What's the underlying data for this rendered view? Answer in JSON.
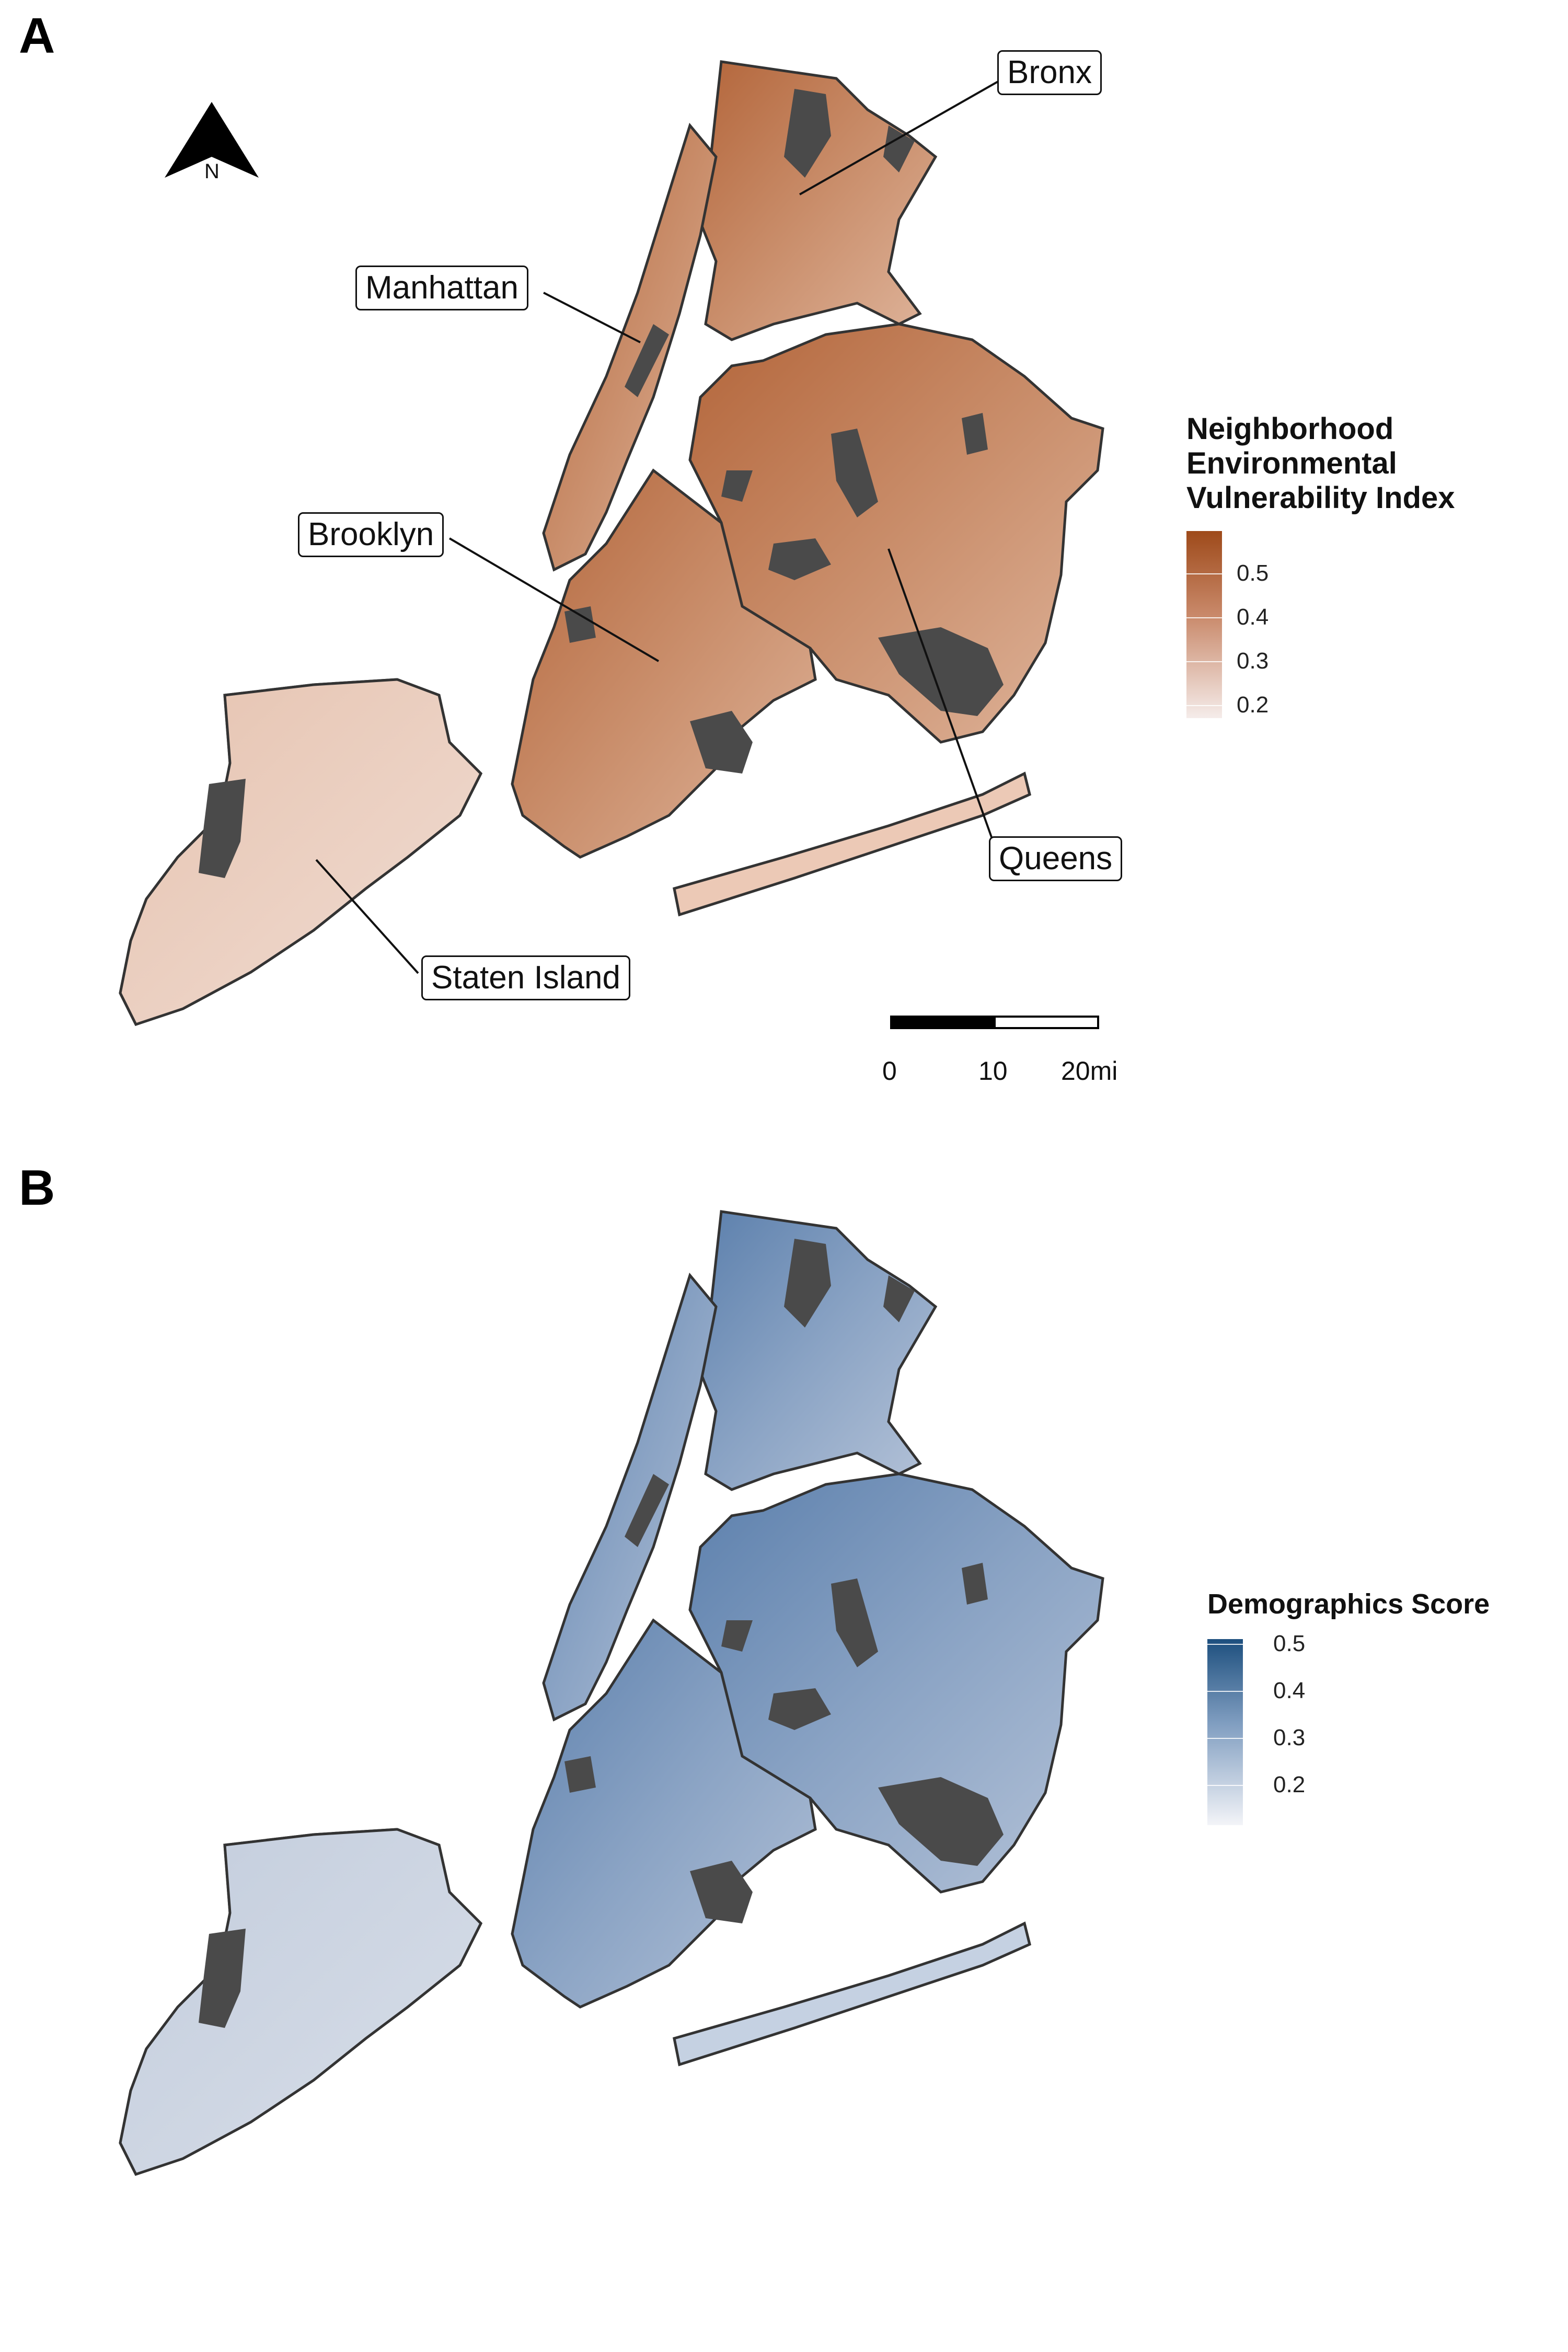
{
  "panels": {
    "a": {
      "letter": "A",
      "legend": {
        "title": "Neighborhood Environmental Vulnerability Index",
        "ticks": [
          "0.5",
          "0.4",
          "0.3",
          "0.2"
        ],
        "tick_values": [
          0.5,
          0.4,
          0.3,
          0.2
        ],
        "colors": {
          "high": "#9e4a1a",
          "mid": "#c9896a",
          "low": "#f5ecea"
        }
      },
      "labels": {
        "bronx": "Bronx",
        "manhattan": "Manhattan",
        "brooklyn": "Brooklyn",
        "queens": "Queens",
        "staten_island": "Staten Island"
      },
      "north": "N",
      "scale": {
        "ticks": [
          "0",
          "10",
          "20mi"
        ]
      }
    },
    "b": {
      "letter": "B",
      "legend": {
        "title": "Demographics Score",
        "ticks": [
          "0.5",
          "0.4",
          "0.3",
          "0.2"
        ],
        "tick_values": [
          0.5,
          0.4,
          0.3,
          0.2
        ],
        "colors": {
          "high": "#1d4f7e",
          "mid": "#7f9dc0",
          "low": "#f3f4f8"
        }
      }
    }
  },
  "colors": {
    "park": "#4a4a4a",
    "border": "#333333"
  }
}
